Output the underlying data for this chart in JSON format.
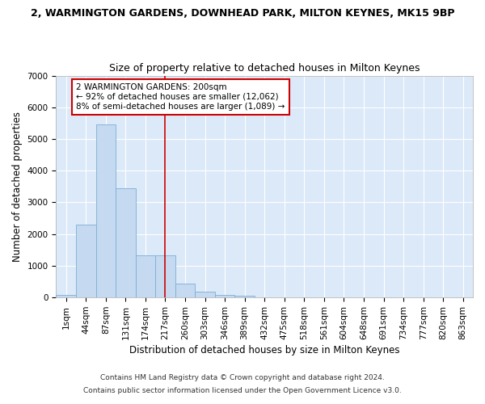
{
  "title1": "2, WARMINGTON GARDENS, DOWNHEAD PARK, MILTON KEYNES, MK15 9BP",
  "title2": "Size of property relative to detached houses in Milton Keynes",
  "xlabel": "Distribution of detached houses by size in Milton Keynes",
  "ylabel": "Number of detached properties",
  "footer1": "Contains HM Land Registry data © Crown copyright and database right 2024.",
  "footer2": "Contains public sector information licensed under the Open Government Licence v3.0.",
  "bin_labels": [
    "1sqm",
    "44sqm",
    "87sqm",
    "131sqm",
    "174sqm",
    "217sqm",
    "260sqm",
    "303sqm",
    "346sqm",
    "389sqm",
    "432sqm",
    "475sqm",
    "518sqm",
    "561sqm",
    "604sqm",
    "648sqm",
    "691sqm",
    "734sqm",
    "777sqm",
    "820sqm",
    "863sqm"
  ],
  "bar_values": [
    75,
    2300,
    5450,
    3450,
    1320,
    1320,
    440,
    175,
    80,
    60,
    0,
    0,
    0,
    0,
    0,
    0,
    0,
    0,
    0,
    0,
    0
  ],
  "bar_color": "#c5d9f1",
  "bar_edge_color": "#7bafd4",
  "vline_color": "#cc0000",
  "vline_x_bin": 5,
  "annotation_text": "2 WARMINGTON GARDENS: 200sqm\n← 92% of detached houses are smaller (12,062)\n8% of semi-detached houses are larger (1,089) →",
  "annotation_box_color": "#ffffff",
  "annotation_box_edge": "#cc0000",
  "ylim": [
    0,
    7000
  ],
  "yticks": [
    0,
    1000,
    2000,
    3000,
    4000,
    5000,
    6000,
    7000
  ],
  "background_color": "#dce9f8",
  "grid_color": "#ffffff",
  "title1_fontsize": 9,
  "title2_fontsize": 9,
  "xlabel_fontsize": 8.5,
  "ylabel_fontsize": 8.5,
  "tick_fontsize": 7.5,
  "annotation_fontsize": 7.5,
  "footer_fontsize": 6.5
}
